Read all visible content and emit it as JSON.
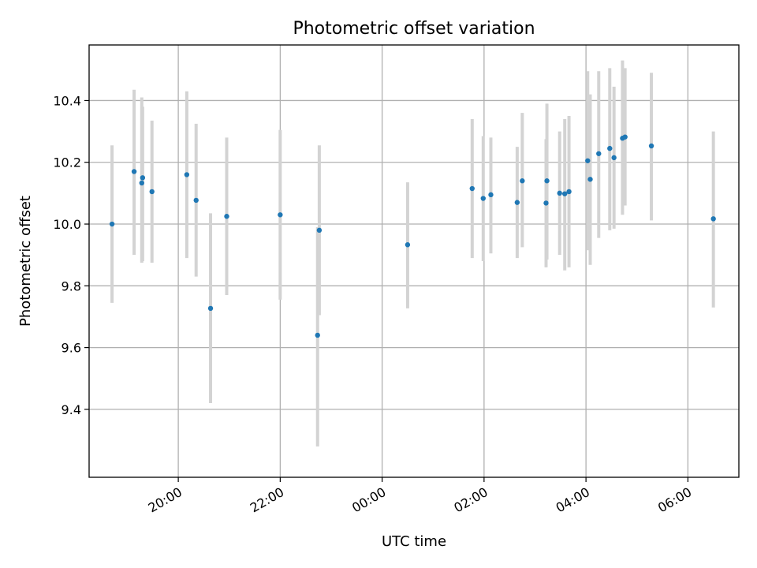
{
  "chart_data": {
    "type": "scatter",
    "title": "Photometric offset variation",
    "xlabel": "UTC time",
    "ylabel": "Photometric offset",
    "x_axis": "time (hours, day 1 evening through day 2 morning)",
    "xlim": [
      "18:15",
      "07:00"
    ],
    "ylim": [
      9.18,
      10.58
    ],
    "x_ticks": [
      "20:00",
      "22:00",
      "00:00",
      "02:00",
      "04:00",
      "06:00"
    ],
    "y_ticks": [
      "9.4",
      "9.6",
      "9.8",
      "10.0",
      "10.2",
      "10.4"
    ],
    "grid": true,
    "marker_color": "#1f77b4",
    "errorbar_color": "#d3d3d3",
    "points": [
      {
        "t": "18:42",
        "y": 10.0,
        "lo": 9.745,
        "hi": 10.255
      },
      {
        "t": "19:08",
        "y": 10.17,
        "lo": 9.9,
        "hi": 10.435
      },
      {
        "t": "19:17",
        "y": 10.133,
        "lo": 9.875,
        "hi": 10.41
      },
      {
        "t": "19:18",
        "y": 10.15,
        "lo": 9.88,
        "hi": 10.38
      },
      {
        "t": "19:29",
        "y": 10.105,
        "lo": 9.875,
        "hi": 10.335
      },
      {
        "t": "20:10",
        "y": 10.16,
        "lo": 9.89,
        "hi": 10.43
      },
      {
        "t": "20:21",
        "y": 10.077,
        "lo": 9.83,
        "hi": 10.325
      },
      {
        "t": "20:38",
        "y": 9.727,
        "lo": 9.42,
        "hi": 10.035
      },
      {
        "t": "20:57",
        "y": 10.025,
        "lo": 9.77,
        "hi": 10.28
      },
      {
        "t": "22:00",
        "y": 10.03,
        "lo": 9.755,
        "hi": 10.305
      },
      {
        "t": "22:44",
        "y": 9.64,
        "lo": 9.28,
        "hi": 9.99
      },
      {
        "t": "22:46",
        "y": 9.98,
        "lo": 9.705,
        "hi": 10.255
      },
      {
        "t": "00:30",
        "y": 9.933,
        "lo": 9.727,
        "hi": 10.135
      },
      {
        "t": "01:46",
        "y": 10.115,
        "lo": 9.89,
        "hi": 10.34
      },
      {
        "t": "01:59",
        "y": 10.083,
        "lo": 9.88,
        "hi": 10.285
      },
      {
        "t": "02:08",
        "y": 10.095,
        "lo": 9.905,
        "hi": 10.28
      },
      {
        "t": "02:39",
        "y": 10.07,
        "lo": 9.89,
        "hi": 10.25
      },
      {
        "t": "02:45",
        "y": 10.14,
        "lo": 9.925,
        "hi": 10.36
      },
      {
        "t": "03:13",
        "y": 10.068,
        "lo": 9.86,
        "hi": 10.275
      },
      {
        "t": "03:14",
        "y": 10.14,
        "lo": 9.885,
        "hi": 10.39
      },
      {
        "t": "03:29",
        "y": 10.1,
        "lo": 9.9,
        "hi": 10.3
      },
      {
        "t": "03:35",
        "y": 10.098,
        "lo": 9.85,
        "hi": 10.34
      },
      {
        "t": "03:40",
        "y": 10.105,
        "lo": 9.86,
        "hi": 10.35
      },
      {
        "t": "04:02",
        "y": 10.205,
        "lo": 9.915,
        "hi": 10.495
      },
      {
        "t": "04:05",
        "y": 10.145,
        "lo": 9.868,
        "hi": 10.42
      },
      {
        "t": "04:15",
        "y": 10.228,
        "lo": 9.955,
        "hi": 10.495
      },
      {
        "t": "04:28",
        "y": 10.245,
        "lo": 9.98,
        "hi": 10.505
      },
      {
        "t": "04:33",
        "y": 10.215,
        "lo": 9.985,
        "hi": 10.445
      },
      {
        "t": "04:43",
        "y": 10.278,
        "lo": 10.03,
        "hi": 10.53
      },
      {
        "t": "04:46",
        "y": 10.282,
        "lo": 10.06,
        "hi": 10.505
      },
      {
        "t": "05:17",
        "y": 10.253,
        "lo": 10.012,
        "hi": 10.49
      },
      {
        "t": "06:30",
        "y": 10.017,
        "lo": 9.73,
        "hi": 10.3
      }
    ]
  }
}
